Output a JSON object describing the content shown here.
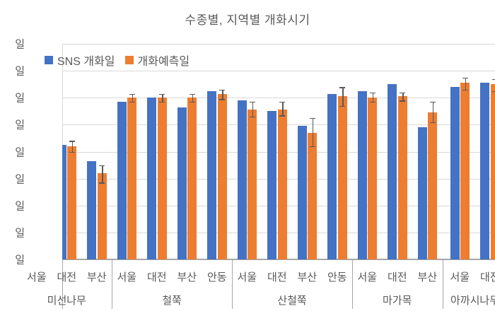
{
  "title": "수종별, 지역별 개화시기",
  "legend": {
    "items": [
      {
        "label": "SNS 개화일",
        "color": "#4472c4"
      },
      {
        "label": "개화예측일",
        "color": "#ed7d31"
      }
    ]
  },
  "y_axis": {
    "tick_label": "일",
    "tick_count": 9,
    "note": "date tick labels are clipped at the screenshot edge; only the trailing '일' character is visible for each of the 9 gridlines"
  },
  "colors": {
    "series_sns": "#4472c4",
    "series_pred": "#ed7d31",
    "gridline": "#d9d9d9",
    "axis": "#a6a6a6",
    "text": "#595959",
    "error_bar": "#595959"
  },
  "chart_data": {
    "type": "bar",
    "title": "수종별, 지역별 개화시기",
    "series_names": [
      "SNS 개화일",
      "개화예측일"
    ],
    "value_unit": "y-gridline units above the bottom axis (absolute date values not visible; axis labels clipped to '일')",
    "ylim": [
      0,
      8
    ],
    "grid": true,
    "legend_position": "top-left-inside",
    "error_bars_on": "개화예측일",
    "groups": [
      {
        "species": "미선나무",
        "regions": [
          {
            "name": "서울",
            "sns": null,
            "pred": null,
            "err": null
          },
          {
            "name": "대전",
            "sns": 4.25,
            "pred": 4.2,
            "err": [
              4.0,
              4.4
            ]
          },
          {
            "name": "부산",
            "sns": 3.65,
            "pred": 3.2,
            "err": [
              2.85,
              3.5
            ]
          }
        ]
      },
      {
        "species": "철쭉",
        "regions": [
          {
            "name": "서울",
            "sns": 5.85,
            "pred": 6.0,
            "err": [
              5.85,
              6.15
            ]
          },
          {
            "name": "대전",
            "sns": 6.0,
            "pred": 6.0,
            "err": [
              5.85,
              6.15
            ]
          },
          {
            "name": "부산",
            "sns": 5.65,
            "pred": 6.0,
            "err": [
              5.85,
              6.15
            ]
          },
          {
            "name": "안동",
            "sns": 6.25,
            "pred": 6.15,
            "err": [
              5.95,
              6.3
            ]
          }
        ]
      },
      {
        "species": "산철쭉",
        "regions": [
          {
            "name": "서울",
            "sns": 5.9,
            "pred": 5.55,
            "err": [
              5.3,
              5.85
            ]
          },
          {
            "name": "대전",
            "sns": 5.5,
            "pred": 5.55,
            "err": [
              5.35,
              5.85
            ]
          },
          {
            "name": "부산",
            "sns": 4.95,
            "pred": 4.7,
            "err": [
              4.2,
              5.25
            ]
          },
          {
            "name": "안동",
            "sns": 6.15,
            "pred": 6.05,
            "err": [
              5.7,
              6.4
            ]
          }
        ]
      },
      {
        "species": "마가목",
        "regions": [
          {
            "name": "서울",
            "sns": 6.25,
            "pred": 6.0,
            "err": [
              5.85,
              6.2
            ]
          },
          {
            "name": "대전",
            "sns": 6.5,
            "pred": 6.05,
            "err": [
              5.9,
              6.2
            ]
          },
          {
            "name": "부산",
            "sns": 4.9,
            "pred": 5.45,
            "err": [
              5.1,
              5.85
            ]
          }
        ]
      },
      {
        "species": "아까시나무",
        "regions": [
          {
            "name": "서울",
            "sns": 6.4,
            "pred": 6.55,
            "err": [
              6.3,
              6.75
            ]
          },
          {
            "name": "대전",
            "sns": 6.55,
            "pred": 6.5,
            "err": [
              6.25,
              6.7
            ]
          }
        ]
      }
    ]
  }
}
